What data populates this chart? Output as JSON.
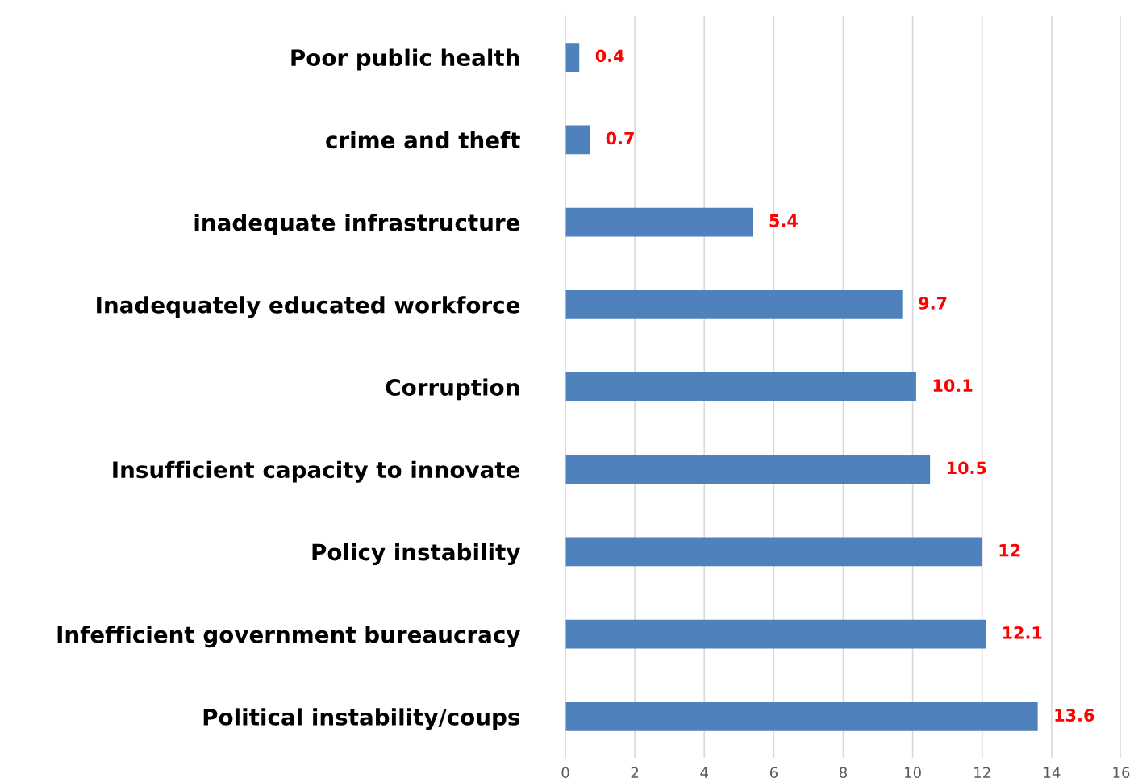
{
  "chart_data": {
    "type": "bar",
    "orientation": "horizontal",
    "categories": [
      "Poor public health",
      "crime and theft",
      "inadequate infrastructure",
      "Inadequately educated workforce",
      "Corruption",
      "Insufficient capacity to innovate",
      "Policy instability",
      "Infefficient government bureaucracy",
      "Political instability/coups"
    ],
    "values": [
      0.4,
      0.7,
      5.4,
      9.7,
      10.1,
      10.5,
      12,
      12.1,
      13.6
    ],
    "color": "#4f81bd",
    "xlim": [
      0,
      16
    ],
    "xticks": [
      0,
      2,
      4,
      6,
      8,
      10,
      12,
      14,
      16
    ],
    "grid": "x",
    "data_labels": true,
    "legend": false
  }
}
